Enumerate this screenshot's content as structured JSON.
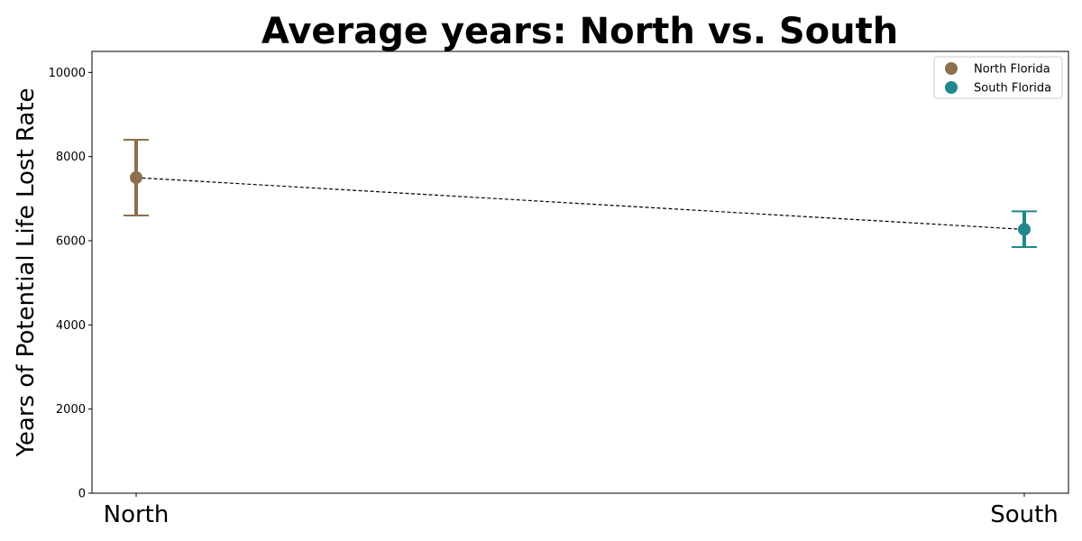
{
  "chart_data": {
    "type": "scatter",
    "title": "Average years: North vs. South",
    "xlabel": "",
    "ylabel": "Years of Potential Life Lost Rate",
    "categories": [
      "North",
      "South"
    ],
    "ylim": [
      0,
      10500
    ],
    "yticks": [
      0,
      2000,
      4000,
      6000,
      8000,
      10000
    ],
    "grid": false,
    "legend_position": "top-right",
    "connector": {
      "style": "dashed",
      "color": "#000000"
    },
    "series": [
      {
        "name": "North Florida",
        "category": "North",
        "value": 7500,
        "error_low": 6600,
        "error_high": 8400,
        "color": "#8B6F4E"
      },
      {
        "name": "South Florida",
        "category": "South",
        "value": 6270,
        "error_low": 5850,
        "error_high": 6700,
        "color": "#20878A"
      }
    ]
  }
}
